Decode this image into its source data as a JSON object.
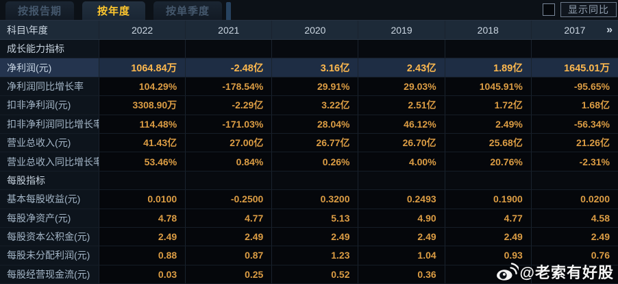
{
  "tabs": [
    {
      "label": "按报告期",
      "active": false
    },
    {
      "label": "按年度",
      "active": true
    },
    {
      "label": "按单季度",
      "active": false
    }
  ],
  "controls": {
    "yoy_label": "显示同比",
    "yoy_checked": false
  },
  "table": {
    "corner_label": "科目\\年度",
    "years": [
      "2022",
      "2021",
      "2020",
      "2019",
      "2018",
      "2017"
    ],
    "more_icon": "»",
    "rows": [
      {
        "type": "section",
        "label": "成长能力指标",
        "values": [
          "",
          "",
          "",
          "",
          "",
          ""
        ]
      },
      {
        "type": "data",
        "highlight": true,
        "label": "净利润(元)",
        "values": [
          "1064.84万",
          "-2.48亿",
          "3.16亿",
          "2.43亿",
          "1.89亿",
          "1645.01万"
        ]
      },
      {
        "type": "data",
        "label": "净利润同比增长率",
        "values": [
          "104.29%",
          "-178.54%",
          "29.91%",
          "29.03%",
          "1045.91%",
          "-95.65%"
        ]
      },
      {
        "type": "data",
        "label": "扣非净利润(元)",
        "values": [
          "3308.90万",
          "-2.29亿",
          "3.22亿",
          "2.51亿",
          "1.72亿",
          "1.68亿"
        ]
      },
      {
        "type": "data",
        "label": "扣非净利润同比增长率",
        "values": [
          "114.48%",
          "-171.03%",
          "28.04%",
          "46.12%",
          "2.49%",
          "-56.34%"
        ]
      },
      {
        "type": "data",
        "label": "营业总收入(元)",
        "values": [
          "41.43亿",
          "27.00亿",
          "26.77亿",
          "26.70亿",
          "25.68亿",
          "21.26亿"
        ]
      },
      {
        "type": "data",
        "label": "营业总收入同比增长率",
        "values": [
          "53.46%",
          "0.84%",
          "0.26%",
          "4.00%",
          "20.76%",
          "-2.31%"
        ]
      },
      {
        "type": "section",
        "label": "每股指标",
        "values": [
          "",
          "",
          "",
          "",
          "",
          ""
        ]
      },
      {
        "type": "data",
        "label": "基本每股收益(元)",
        "values": [
          "0.0100",
          "-0.2500",
          "0.3200",
          "0.2493",
          "0.1900",
          "0.0200"
        ]
      },
      {
        "type": "data",
        "label": "每股净资产(元)",
        "values": [
          "4.78",
          "4.77",
          "5.13",
          "4.90",
          "4.77",
          "4.58"
        ]
      },
      {
        "type": "data",
        "label": "每股资本公积金(元)",
        "values": [
          "2.49",
          "2.49",
          "2.49",
          "2.49",
          "2.49",
          "2.49"
        ]
      },
      {
        "type": "data",
        "label": "每股未分配利润(元)",
        "values": [
          "0.88",
          "0.87",
          "1.23",
          "1.04",
          "0.93",
          "0.76"
        ]
      },
      {
        "type": "data",
        "label": "每股经营现金流(元)",
        "values": [
          "0.03",
          "0.25",
          "0.52",
          "0.36",
          "",
          ""
        ]
      }
    ]
  },
  "watermark": {
    "text": "@老索有好股",
    "icon": "weibo-icon"
  },
  "colors": {
    "background": "#0a0e14",
    "header_bg": "#1d2a38",
    "highlight_row_bg": "#1e2d44",
    "value_text": "#dc9d44",
    "highlight_value_text": "#fdb84e",
    "active_tab_text": "#ffc72e",
    "label_text": "#a4b6c7"
  }
}
